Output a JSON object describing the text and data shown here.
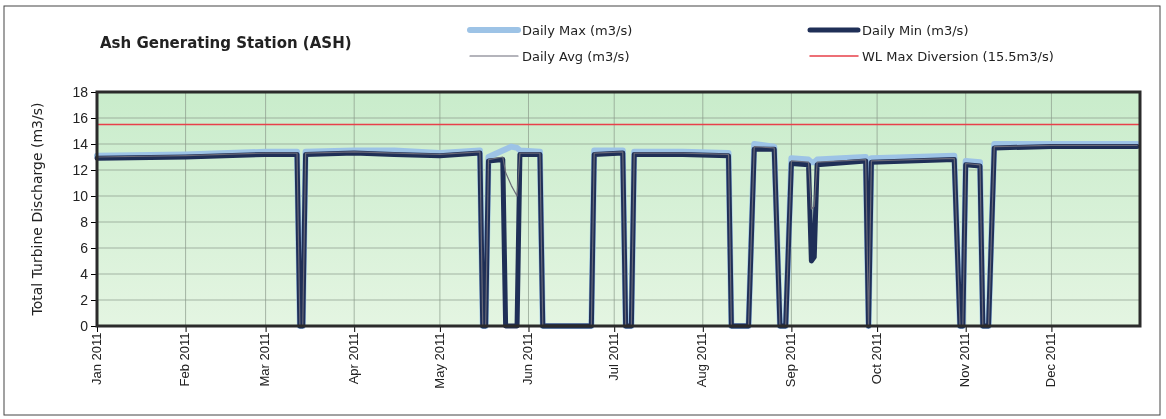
{
  "chart_data": {
    "type": "line",
    "title": "Ash Generating Station (ASH)",
    "ylabel": "Total Turbine Discharge (m3/s)",
    "x": [
      "2011-01-01",
      "2011-02-01",
      "2011-03-01",
      "2011-03-12",
      "2011-03-13",
      "2011-03-14",
      "2011-03-15",
      "2011-04-01",
      "2011-04-15",
      "2011-05-01",
      "2011-05-15",
      "2011-05-16",
      "2011-05-17",
      "2011-05-18",
      "2011-05-23",
      "2011-05-24",
      "2011-05-26",
      "2011-05-28",
      "2011-05-29",
      "2011-06-05",
      "2011-06-06",
      "2011-06-23",
      "2011-06-24",
      "2011-07-04",
      "2011-07-05",
      "2011-07-07",
      "2011-07-08",
      "2011-07-25",
      "2011-08-10",
      "2011-08-11",
      "2011-08-17",
      "2011-08-19",
      "2011-08-26",
      "2011-08-28",
      "2011-08-30",
      "2011-09-01",
      "2011-09-07",
      "2011-09-08",
      "2011-09-09",
      "2011-09-10",
      "2011-09-27",
      "2011-09-28",
      "2011-09-29",
      "2011-10-28",
      "2011-10-30",
      "2011-10-31",
      "2011-11-01",
      "2011-11-06",
      "2011-11-07",
      "2011-11-09",
      "2011-11-11",
      "2011-12-01",
      "2011-12-31"
    ],
    "series": [
      {
        "name": "Daily Max (m3/s)",
        "color": "#9dc3e6",
        "values": [
          13.1,
          13.2,
          13.4,
          13.4,
          0,
          0,
          13.4,
          13.5,
          13.5,
          13.3,
          13.5,
          0,
          0,
          13.0,
          13.5,
          13.6,
          13.8,
          13.7,
          13.5,
          13.4,
          0,
          0,
          13.5,
          13.5,
          0,
          0,
          13.4,
          13.4,
          13.3,
          0,
          0,
          14.0,
          13.8,
          0,
          0,
          12.9,
          12.8,
          12.6,
          12.6,
          12.8,
          13.0,
          0,
          12.9,
          13.1,
          0,
          0,
          12.7,
          12.6,
          0,
          0,
          14.0,
          14.0,
          14.0
        ]
      },
      {
        "name": "Daily Avg (m3/s)",
        "color": "#6a6a78",
        "values": [
          13.0,
          13.1,
          13.3,
          13.3,
          0,
          0,
          13.3,
          13.4,
          13.3,
          13.2,
          13.4,
          0,
          0,
          12.8,
          13.0,
          11.8,
          10.8,
          10.0,
          13.3,
          13.3,
          0,
          0,
          13.3,
          13.4,
          0,
          0,
          13.3,
          13.3,
          13.2,
          0,
          0,
          13.8,
          13.7,
          0,
          0,
          12.7,
          12.6,
          9.0,
          9.2,
          12.6,
          12.8,
          0,
          12.7,
          12.9,
          0,
          0,
          12.5,
          12.4,
          0,
          0,
          13.8,
          13.9,
          13.9
        ]
      },
      {
        "name": "Daily Min (m3/s)",
        "color": "#1f2f57",
        "values": [
          12.9,
          13.0,
          13.2,
          13.2,
          0,
          0,
          13.2,
          13.3,
          13.2,
          13.1,
          13.3,
          0,
          0,
          12.7,
          12.8,
          0,
          0,
          0,
          13.2,
          13.2,
          0,
          0,
          13.2,
          13.3,
          0,
          0,
          13.2,
          13.2,
          13.1,
          0,
          0,
          13.6,
          13.6,
          0,
          0,
          12.5,
          12.4,
          5.0,
          5.3,
          12.4,
          12.7,
          0,
          12.6,
          12.8,
          0,
          0,
          12.4,
          12.3,
          0,
          0,
          13.7,
          13.8,
          13.8
        ]
      }
    ],
    "ref_lines": [
      {
        "axis": "y",
        "value": 15.5,
        "label": "WL Max Diversion (15.5m3/s)",
        "color": "#e8404a"
      }
    ],
    "xlim": [
      "2011-01-01",
      "2012-01-01"
    ],
    "xticks": [
      {
        "value": "2011-01-01",
        "label": "Jan 2011"
      },
      {
        "value": "2011-02-01",
        "label": "Feb 2011"
      },
      {
        "value": "2011-03-01",
        "label": "Mar 2011"
      },
      {
        "value": "2011-04-01",
        "label": "Apr 2011"
      },
      {
        "value": "2011-05-01",
        "label": "May 2011"
      },
      {
        "value": "2011-06-01",
        "label": "Jun 2011"
      },
      {
        "value": "2011-07-01",
        "label": "Jul 2011"
      },
      {
        "value": "2011-08-01",
        "label": "Aug 2011"
      },
      {
        "value": "2011-09-01",
        "label": "Sep 2011"
      },
      {
        "value": "2011-10-01",
        "label": "Oct 2011"
      },
      {
        "value": "2011-11-01",
        "label": "Nov 2011"
      },
      {
        "value": "2011-12-01",
        "label": "Dec 2011"
      }
    ],
    "ylim": [
      0,
      18
    ],
    "yticks": [
      0,
      2,
      4,
      6,
      8,
      10,
      12,
      14,
      16,
      18
    ],
    "grid": true,
    "legend": "top",
    "marker": "none",
    "line_style": "solid"
  }
}
